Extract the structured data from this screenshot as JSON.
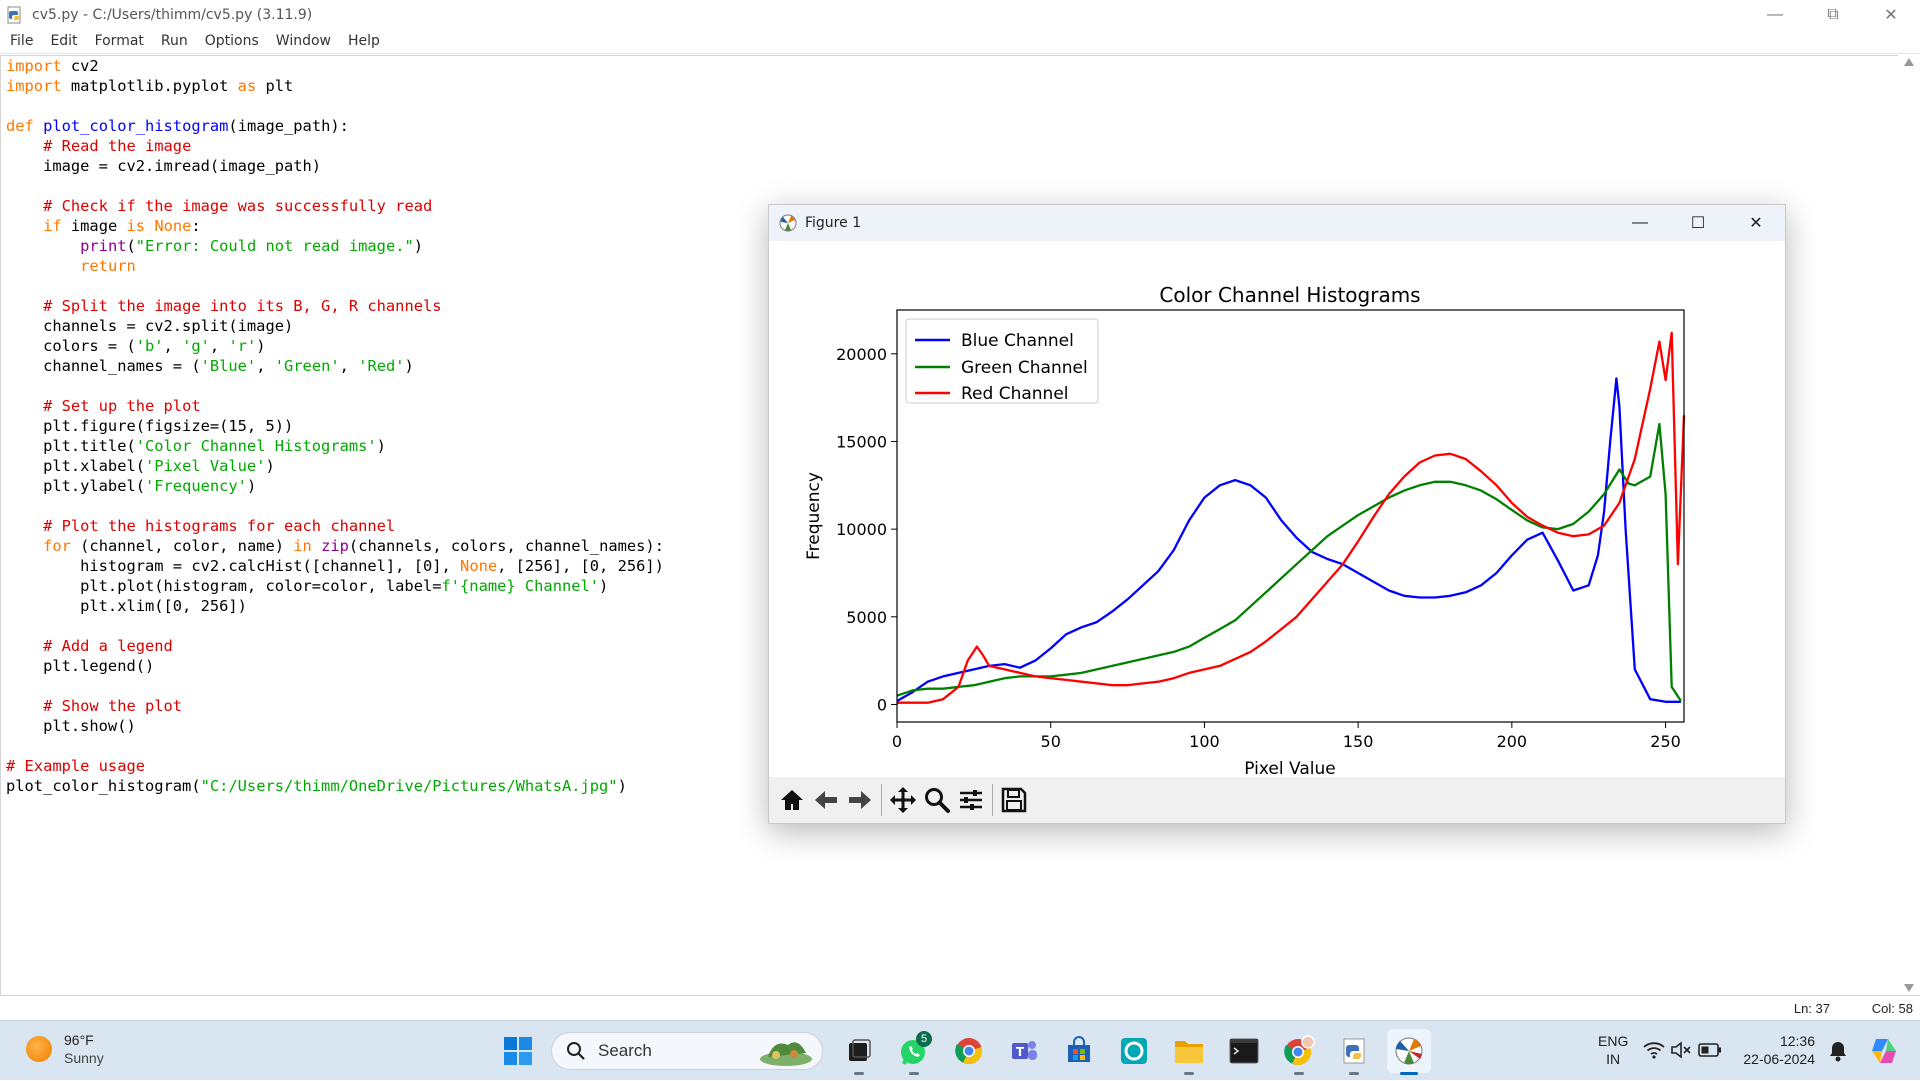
{
  "window": {
    "title": "cv5.py - C:/Users/thimm/cv5.py (3.11.9)",
    "menu": [
      "File",
      "Edit",
      "Format",
      "Run",
      "Options",
      "Window",
      "Help"
    ]
  },
  "status": {
    "ln": "Ln: 37",
    "col": "Col: 58"
  },
  "figure": {
    "title": "Figure 1",
    "toolbar": [
      "home-icon",
      "back-arrow-icon",
      "forward-arrow-icon",
      "pan-icon",
      "zoom-icon",
      "subplots-icon",
      "save-icon"
    ]
  },
  "chart_data": {
    "type": "line",
    "title": "Color Channel Histograms",
    "xlabel": "Pixel Value",
    "ylabel": "Frequency",
    "xlim": [
      0,
      256
    ],
    "ylim": [
      -1000,
      22500
    ],
    "xticks": [
      0,
      50,
      100,
      150,
      200,
      250
    ],
    "yticks": [
      0,
      5000,
      10000,
      15000,
      20000
    ],
    "legend": "top-left",
    "grid": false,
    "series": [
      {
        "name": "Blue Channel",
        "color": "#0000ff",
        "x": [
          0,
          5,
          10,
          15,
          20,
          25,
          30,
          35,
          40,
          45,
          50,
          55,
          60,
          65,
          70,
          75,
          80,
          85,
          90,
          95,
          100,
          105,
          110,
          115,
          120,
          125,
          130,
          135,
          140,
          145,
          150,
          155,
          160,
          165,
          170,
          175,
          180,
          185,
          190,
          195,
          200,
          205,
          210,
          215,
          220,
          225,
          228,
          230,
          232,
          234,
          235,
          237,
          240,
          245,
          250,
          255
        ],
        "y": [
          200,
          700,
          1300,
          1600,
          1800,
          2000,
          2200,
          2300,
          2100,
          2500,
          3200,
          4000,
          4400,
          4700,
          5300,
          6000,
          6800,
          7600,
          8800,
          10500,
          11800,
          12500,
          12800,
          12500,
          11800,
          10500,
          9500,
          8700,
          8300,
          8000,
          7500,
          7000,
          6500,
          6200,
          6100,
          6100,
          6200,
          6400,
          6800,
          7500,
          8500,
          9400,
          9800,
          8200,
          6500,
          6800,
          8500,
          11000,
          15000,
          18600,
          17000,
          10000,
          2000,
          300,
          150,
          150
        ]
      },
      {
        "name": "Green Channel",
        "color": "#008000",
        "x": [
          0,
          5,
          10,
          15,
          20,
          25,
          30,
          35,
          40,
          45,
          50,
          55,
          60,
          65,
          70,
          75,
          80,
          85,
          90,
          95,
          100,
          105,
          110,
          115,
          120,
          125,
          130,
          135,
          140,
          145,
          150,
          155,
          160,
          165,
          170,
          175,
          180,
          185,
          190,
          195,
          200,
          205,
          210,
          215,
          220,
          225,
          230,
          235,
          238,
          240,
          245,
          248,
          250,
          252,
          255
        ],
        "y": [
          500,
          800,
          900,
          900,
          1000,
          1100,
          1300,
          1500,
          1600,
          1600,
          1600,
          1700,
          1800,
          2000,
          2200,
          2400,
          2600,
          2800,
          3000,
          3300,
          3800,
          4300,
          4800,
          5600,
          6400,
          7200,
          8000,
          8800,
          9600,
          10200,
          10800,
          11300,
          11800,
          12200,
          12500,
          12700,
          12700,
          12500,
          12200,
          11700,
          11100,
          10500,
          10100,
          10000,
          10300,
          11000,
          12000,
          13400,
          12600,
          12500,
          13000,
          16000,
          12000,
          1000,
          200
        ]
      },
      {
        "name": "Red Channel",
        "color": "#ff0000",
        "x": [
          0,
          5,
          10,
          15,
          20,
          23,
          26,
          28,
          30,
          35,
          40,
          45,
          50,
          55,
          60,
          65,
          70,
          75,
          80,
          85,
          90,
          95,
          100,
          105,
          110,
          115,
          120,
          125,
          130,
          135,
          140,
          145,
          150,
          155,
          160,
          165,
          170,
          175,
          180,
          185,
          190,
          195,
          200,
          205,
          210,
          215,
          220,
          225,
          230,
          235,
          240,
          245,
          248,
          250,
          252,
          254,
          256
        ],
        "y": [
          100,
          100,
          100,
          300,
          1000,
          2500,
          3300,
          2800,
          2200,
          2000,
          1800,
          1600,
          1500,
          1400,
          1300,
          1200,
          1100,
          1100,
          1200,
          1300,
          1500,
          1800,
          2000,
          2200,
          2600,
          3000,
          3600,
          4300,
          5000,
          6000,
          7000,
          8000,
          9300,
          10700,
          12000,
          13000,
          13800,
          14200,
          14300,
          14000,
          13300,
          12500,
          11500,
          10700,
          10200,
          9800,
          9600,
          9700,
          10200,
          11500,
          14000,
          18000,
          20700,
          18500,
          21200,
          8000,
          16500
        ]
      }
    ]
  },
  "taskbar": {
    "weather_temp": "96°F",
    "weather_desc": "Sunny",
    "search_label": "Search",
    "whatsapp_badge": "5",
    "lang_line1": "ENG",
    "lang_line2": "IN",
    "time": "12:36",
    "date": "22-06-2024"
  }
}
